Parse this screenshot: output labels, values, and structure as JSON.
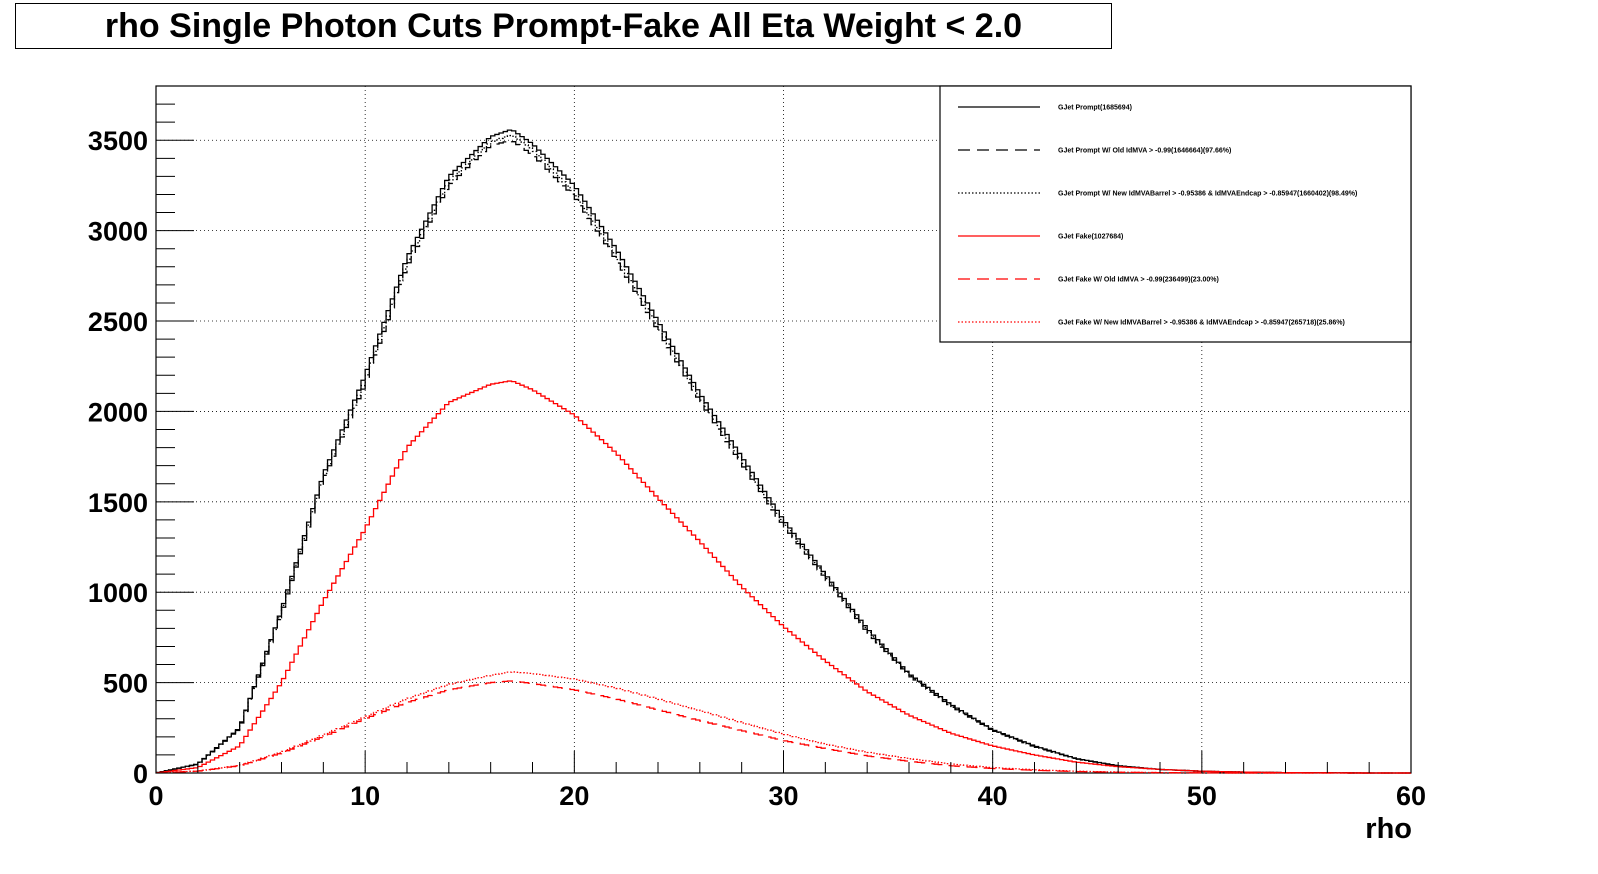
{
  "title": "rho Single Photon Cuts Prompt-Fake All Eta Weight < 2.0",
  "chart_data": {
    "type": "line",
    "title": "rho Single Photon Cuts Prompt-Fake All Eta Weight < 2.0",
    "xlabel": "rho",
    "ylabel": "",
    "xlim": [
      0,
      60
    ],
    "ylim": [
      0,
      3800
    ],
    "x_ticks": [
      "0",
      "10",
      "20",
      "30",
      "40",
      "50",
      "60"
    ],
    "y_ticks": [
      "0",
      "500",
      "1000",
      "1500",
      "2000",
      "2500",
      "3000",
      "3500"
    ],
    "grid": true,
    "legend_position": "top-right",
    "x": [
      0,
      2,
      4,
      6,
      8,
      10,
      12,
      14,
      16,
      17,
      18,
      20,
      22,
      24,
      26,
      28,
      30,
      32,
      34,
      36,
      38,
      40,
      42,
      44,
      46,
      48,
      50,
      52,
      54,
      56,
      58,
      60
    ],
    "series": [
      {
        "name": "GJet Prompt(1685694)",
        "color": "#000000",
        "dash": "solid",
        "values": [
          0,
          50,
          250,
          900,
          1650,
          2200,
          2850,
          3300,
          3520,
          3560,
          3480,
          3250,
          2900,
          2500,
          2100,
          1750,
          1400,
          1100,
          800,
          550,
          380,
          240,
          150,
          80,
          40,
          20,
          10,
          5,
          2,
          1,
          0,
          0
        ]
      },
      {
        "name": "GJet Prompt W/ Old IdMVA > -0.99(1646664)(97.66%)",
        "color": "#000000",
        "dash": "dashed",
        "values": [
          0,
          48,
          245,
          880,
          1620,
          2150,
          2800,
          3250,
          3470,
          3500,
          3420,
          3190,
          2840,
          2450,
          2060,
          1710,
          1370,
          1080,
          780,
          540,
          370,
          235,
          145,
          78,
          39,
          19,
          9,
          4,
          2,
          1,
          0,
          0
        ]
      },
      {
        "name": "GJet Prompt W/ New IdMVABarrel > -0.95386 & IdMVAEndcap > -0.85947(1660402)(98.49%)",
        "color": "#000000",
        "dash": "dotted",
        "values": [
          0,
          49,
          248,
          890,
          1630,
          2170,
          2820,
          3270,
          3490,
          3530,
          3450,
          3210,
          2860,
          2470,
          2080,
          1730,
          1385,
          1090,
          790,
          545,
          375,
          238,
          148,
          79,
          40,
          20,
          10,
          5,
          2,
          1,
          0,
          0
        ]
      },
      {
        "name": "GJet Fake(1027684)",
        "color": "#ff0000",
        "dash": "solid",
        "values": [
          0,
          30,
          150,
          500,
          950,
          1350,
          1800,
          2050,
          2150,
          2170,
          2120,
          1980,
          1770,
          1520,
          1280,
          1030,
          810,
          620,
          450,
          320,
          220,
          150,
          100,
          60,
          35,
          20,
          10,
          5,
          2,
          1,
          0,
          0
        ]
      },
      {
        "name": "GJet Fake W/ Old IdMVA > -0.99(236499)(23.00%)",
        "color": "#ff0000",
        "dash": "dashed",
        "values": [
          0,
          10,
          40,
          110,
          200,
          300,
          390,
          460,
          500,
          510,
          495,
          460,
          410,
          350,
          290,
          235,
          180,
          135,
          95,
          65,
          40,
          25,
          15,
          8,
          4,
          2,
          1,
          0,
          0,
          0,
          0,
          0
        ]
      },
      {
        "name": "GJet Fake W/ New IdMVABarrel > -0.95386 & IdMVAEndcap > -0.85947(265718)(25.86%)",
        "color": "#ff0000",
        "dash": "dotted",
        "values": [
          0,
          11,
          42,
          115,
          210,
          310,
          410,
          490,
          540,
          560,
          550,
          520,
          470,
          410,
          345,
          280,
          215,
          160,
          115,
          80,
          50,
          30,
          18,
          10,
          5,
          2,
          1,
          0,
          0,
          0,
          0,
          0
        ]
      }
    ]
  }
}
